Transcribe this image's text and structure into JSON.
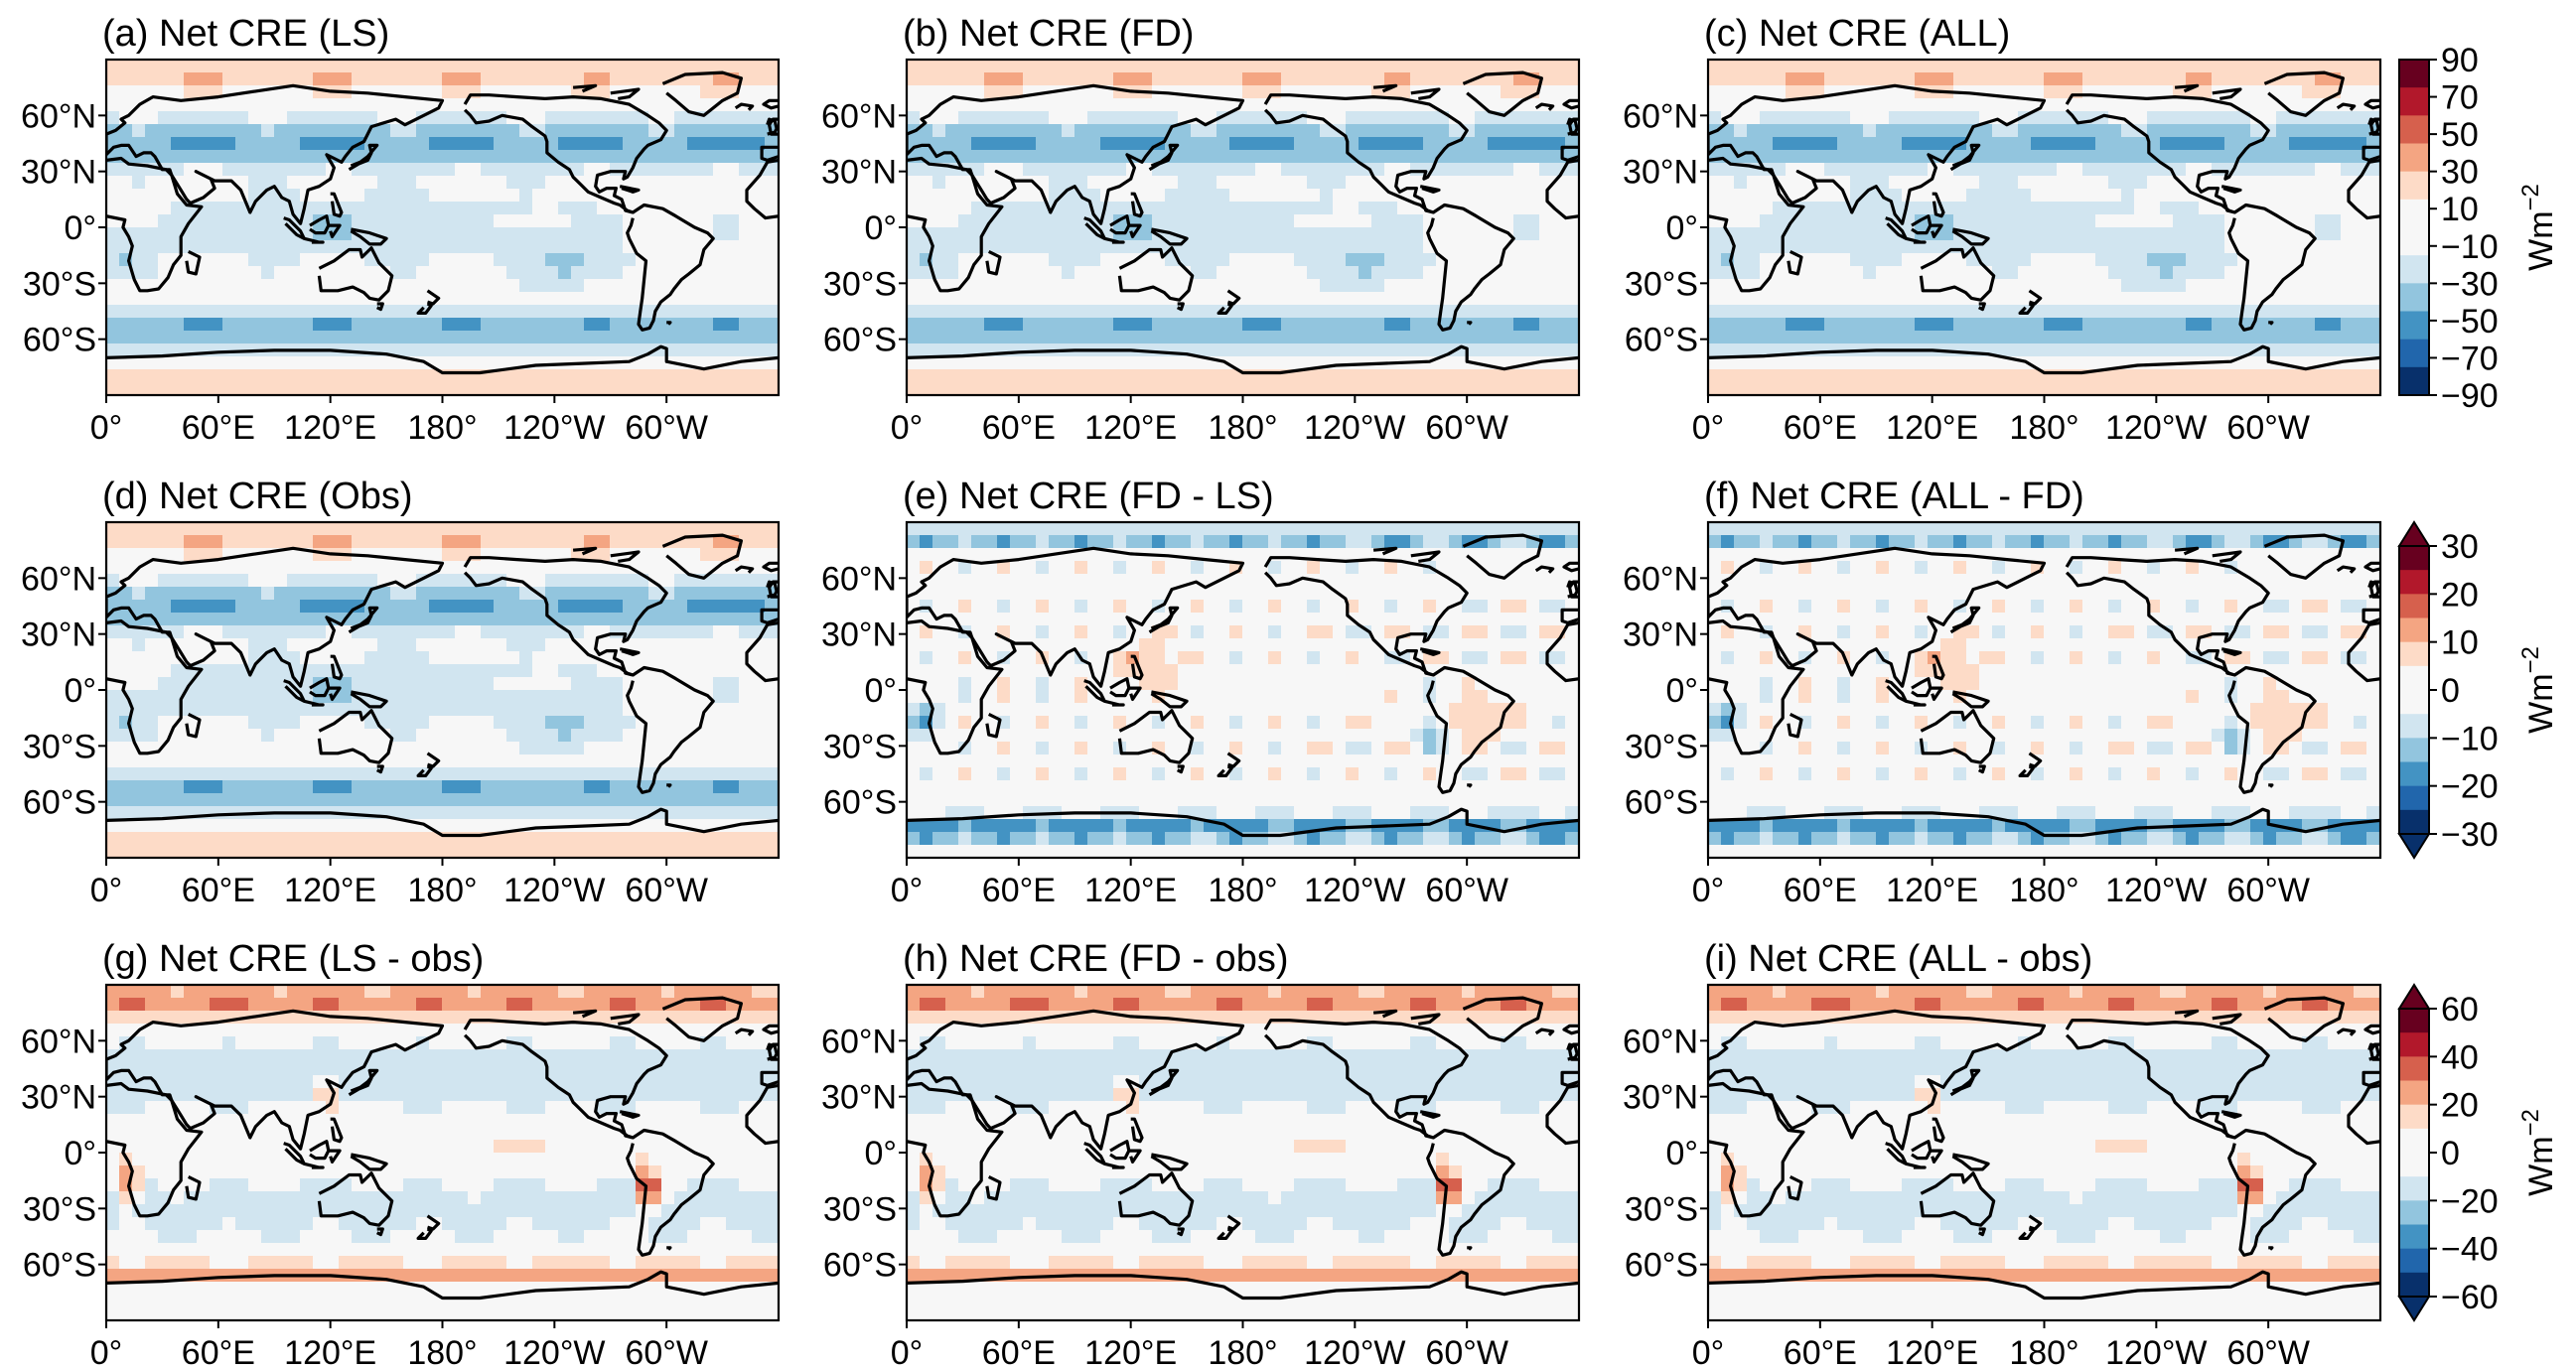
{
  "figure": {
    "lat_ticks": [
      "60°N",
      "30°N",
      "0°",
      "30°S",
      "60°S"
    ],
    "lon_ticks": [
      "0°",
      "60°E",
      "120°E",
      "180°",
      "120°W",
      "60°W"
    ],
    "colormap": [
      "#08306b",
      "#2166ac",
      "#4393c3",
      "#92c5de",
      "#d1e5f0",
      "#f7f7f7",
      "#fddbc7",
      "#f4a582",
      "#d6604d",
      "#b2182b",
      "#67001f"
    ],
    "coastline_color": "#000000"
  },
  "panels": [
    {
      "id": "a",
      "title": "(a) Net CRE (LS)",
      "kind": "mean",
      "row": 0,
      "col": 0
    },
    {
      "id": "b",
      "title": "(b) Net CRE (FD)",
      "kind": "mean",
      "row": 0,
      "col": 1
    },
    {
      "id": "c",
      "title": "(c) Net CRE (ALL)",
      "kind": "mean",
      "row": 0,
      "col": 2
    },
    {
      "id": "d",
      "title": "(d) Net CRE (Obs)",
      "kind": "mean",
      "row": 1,
      "col": 0
    },
    {
      "id": "e",
      "title": "(e) Net CRE (FD - LS)",
      "kind": "diff_small",
      "row": 1,
      "col": 1
    },
    {
      "id": "f",
      "title": "(f) Net CRE (ALL - FD)",
      "kind": "diff_small",
      "row": 1,
      "col": 2
    },
    {
      "id": "g",
      "title": "(g) Net CRE (LS - obs)",
      "kind": "bias",
      "row": 2,
      "col": 0
    },
    {
      "id": "h",
      "title": "(h) Net CRE (FD - obs)",
      "kind": "bias",
      "row": 2,
      "col": 1
    },
    {
      "id": "i",
      "title": "(i) Net CRE (ALL - obs)",
      "kind": "bias",
      "row": 2,
      "col": 2
    }
  ],
  "colorbars": [
    {
      "row": 0,
      "unit": "Wm",
      "unit_exp": "−2",
      "extend": "neither",
      "labels": [
        "90",
        "70",
        "50",
        "30",
        "10",
        "−10",
        "−30",
        "−50",
        "−70",
        "−90"
      ]
    },
    {
      "row": 1,
      "unit": "Wm",
      "unit_exp": "−2",
      "extend": "both",
      "labels": [
        "30",
        "20",
        "10",
        "0",
        "−10",
        "−20",
        "−30"
      ]
    },
    {
      "row": 2,
      "unit": "Wm",
      "unit_exp": "−2",
      "extend": "both",
      "labels": [
        "60",
        "40",
        "20",
        "0",
        "−20",
        "−40",
        "−60"
      ]
    }
  ]
}
